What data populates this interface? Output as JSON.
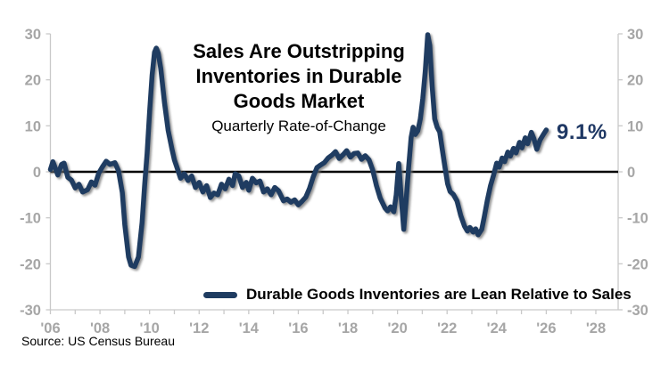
{
  "chart_data": {
    "type": "line",
    "title": "Sales Are Outstripping Inventories in Durable Goods Market",
    "title_lines": [
      "Sales Are Outstripping",
      "Inventories in Durable",
      "Goods Market"
    ],
    "subtitle": "Quarterly Rate-of-Change",
    "xlabel": "",
    "ylabel": "",
    "ylim": [
      -30,
      30
    ],
    "xlim": [
      2006,
      2028.9
    ],
    "grid": false,
    "legend_position": "bottom",
    "y_axis": {
      "ticks": [
        30,
        20,
        10,
        0,
        -10,
        -20,
        -30
      ],
      "tick_labels": [
        "30",
        "20",
        "10",
        "0",
        "-10",
        "-20",
        "-30"
      ],
      "sides": [
        "left",
        "right"
      ]
    },
    "x_axis": {
      "label_years": [
        2006,
        2008,
        2010,
        2012,
        2014,
        2016,
        2018,
        2020,
        2022,
        2024,
        2026,
        2028
      ],
      "tick_labels": [
        "'06",
        "'08",
        "'10",
        "'12",
        "'14",
        "'16",
        "'18",
        "'20",
        "'22",
        "'24",
        "'26",
        "'28"
      ],
      "minor_tick_years": [
        2006,
        2007,
        2008,
        2009,
        2010,
        2011,
        2012,
        2013,
        2014,
        2015,
        2016,
        2017,
        2018,
        2019,
        2020,
        2021,
        2022,
        2023,
        2024,
        2025,
        2026,
        2027,
        2028
      ]
    },
    "zero_line": true,
    "annotation": {
      "text": "9.1%",
      "x": 2026.5,
      "y": 8.5
    },
    "source": "Source: US Census Bureau",
    "colors": {
      "line": "#1F3C61",
      "annotation": "#1F3864",
      "axis_label": "#A6A6A6",
      "axis_line": "#C9C9C9",
      "zero_line": "#000000",
      "title": "#000000",
      "legend_text": "#000000"
    },
    "series": [
      {
        "name": "Durable Goods Inventories are Lean Relative to Sales",
        "color": "#1F3C61",
        "points": [
          [
            2006.0,
            0.5
          ],
          [
            2006.1,
            2.2
          ],
          [
            2006.3,
            -0.7
          ],
          [
            2006.45,
            1.6
          ],
          [
            2006.55,
            1.9
          ],
          [
            2006.7,
            -1.2
          ],
          [
            2006.85,
            -1.8
          ],
          [
            2007.0,
            -3.5
          ],
          [
            2007.15,
            -2.7
          ],
          [
            2007.3,
            -4.4
          ],
          [
            2007.5,
            -3.9
          ],
          [
            2007.65,
            -2.2
          ],
          [
            2007.8,
            -2.9
          ],
          [
            2007.95,
            -0.3
          ],
          [
            2008.1,
            1.1
          ],
          [
            2008.25,
            2.3
          ],
          [
            2008.4,
            1.6
          ],
          [
            2008.6,
            2.0
          ],
          [
            2008.75,
            0.2
          ],
          [
            2008.9,
            -4.5
          ],
          [
            2009.0,
            -11.5
          ],
          [
            2009.15,
            -18.5
          ],
          [
            2009.25,
            -20.3
          ],
          [
            2009.4,
            -20.6
          ],
          [
            2009.55,
            -18.5
          ],
          [
            2009.7,
            -11.0
          ],
          [
            2009.8,
            -3.0
          ],
          [
            2009.9,
            4.0
          ],
          [
            2010.0,
            13.0
          ],
          [
            2010.1,
            21.0
          ],
          [
            2010.2,
            26.0
          ],
          [
            2010.27,
            26.9
          ],
          [
            2010.35,
            25.8
          ],
          [
            2010.45,
            22.5
          ],
          [
            2010.6,
            15.0
          ],
          [
            2010.75,
            9.0
          ],
          [
            2010.9,
            5.0
          ],
          [
            2011.0,
            2.6
          ],
          [
            2011.1,
            1.0
          ],
          [
            2011.25,
            -1.4
          ],
          [
            2011.4,
            -0.4
          ],
          [
            2011.55,
            -1.9
          ],
          [
            2011.7,
            -0.9
          ],
          [
            2011.85,
            -3.4
          ],
          [
            2012.0,
            -2.3
          ],
          [
            2012.15,
            -4.4
          ],
          [
            2012.3,
            -3.0
          ],
          [
            2012.45,
            -5.6
          ],
          [
            2012.6,
            -4.6
          ],
          [
            2012.75,
            -5.0
          ],
          [
            2012.9,
            -2.7
          ],
          [
            2013.05,
            -3.7
          ],
          [
            2013.2,
            -1.6
          ],
          [
            2013.35,
            -3.0
          ],
          [
            2013.45,
            -0.4
          ],
          [
            2013.6,
            -0.9
          ],
          [
            2013.75,
            -3.4
          ],
          [
            2013.9,
            -2.3
          ],
          [
            2014.0,
            -4.0
          ],
          [
            2014.15,
            -1.4
          ],
          [
            2014.3,
            -2.4
          ],
          [
            2014.45,
            -2.0
          ],
          [
            2014.6,
            -4.4
          ],
          [
            2014.75,
            -3.7
          ],
          [
            2014.9,
            -5.0
          ],
          [
            2015.05,
            -3.4
          ],
          [
            2015.2,
            -4.1
          ],
          [
            2015.4,
            -6.3
          ],
          [
            2015.55,
            -5.9
          ],
          [
            2015.7,
            -6.6
          ],
          [
            2015.85,
            -6.1
          ],
          [
            2016.0,
            -7.2
          ],
          [
            2016.15,
            -6.4
          ],
          [
            2016.3,
            -5.5
          ],
          [
            2016.45,
            -3.6
          ],
          [
            2016.6,
            -1.1
          ],
          [
            2016.75,
            0.9
          ],
          [
            2016.9,
            1.5
          ],
          [
            2017.05,
            2.0
          ],
          [
            2017.2,
            3.0
          ],
          [
            2017.35,
            3.6
          ],
          [
            2017.5,
            4.4
          ],
          [
            2017.65,
            2.9
          ],
          [
            2017.8,
            3.7
          ],
          [
            2017.95,
            4.6
          ],
          [
            2018.1,
            3.2
          ],
          [
            2018.25,
            4.0
          ],
          [
            2018.4,
            4.1
          ],
          [
            2018.55,
            2.7
          ],
          [
            2018.7,
            3.5
          ],
          [
            2018.85,
            2.6
          ],
          [
            2019.0,
            0.4
          ],
          [
            2019.15,
            -3.0
          ],
          [
            2019.3,
            -5.7
          ],
          [
            2019.5,
            -7.9
          ],
          [
            2019.6,
            -8.5
          ],
          [
            2019.72,
            -7.6
          ],
          [
            2019.85,
            -8.7
          ],
          [
            2019.95,
            -5.0
          ],
          [
            2020.05,
            1.8
          ],
          [
            2020.15,
            -5.5
          ],
          [
            2020.25,
            -12.5
          ],
          [
            2020.35,
            -6.0
          ],
          [
            2020.45,
            1.0
          ],
          [
            2020.55,
            7.5
          ],
          [
            2020.63,
            9.7
          ],
          [
            2020.72,
            8.1
          ],
          [
            2020.82,
            8.9
          ],
          [
            2020.92,
            11.5
          ],
          [
            2021.02,
            16.0
          ],
          [
            2021.12,
            22.0
          ],
          [
            2021.22,
            29.8
          ],
          [
            2021.3,
            27.5
          ],
          [
            2021.4,
            18.5
          ],
          [
            2021.5,
            11.5
          ],
          [
            2021.6,
            9.7
          ],
          [
            2021.7,
            8.7
          ],
          [
            2021.8,
            5.0
          ],
          [
            2021.92,
            0.8
          ],
          [
            2022.02,
            -2.6
          ],
          [
            2022.12,
            -4.3
          ],
          [
            2022.25,
            -4.9
          ],
          [
            2022.4,
            -6.3
          ],
          [
            2022.55,
            -9.5
          ],
          [
            2022.7,
            -11.8
          ],
          [
            2022.82,
            -12.9
          ],
          [
            2022.92,
            -12.1
          ],
          [
            2023.05,
            -13.1
          ],
          [
            2023.15,
            -12.4
          ],
          [
            2023.25,
            -13.7
          ],
          [
            2023.4,
            -12.5
          ],
          [
            2023.5,
            -9.8
          ],
          [
            2023.62,
            -6.3
          ],
          [
            2023.75,
            -3.0
          ],
          [
            2023.88,
            -0.6
          ],
          [
            2024.0,
            1.9
          ],
          [
            2024.1,
            1.0
          ],
          [
            2024.22,
            3.0
          ],
          [
            2024.32,
            2.2
          ],
          [
            2024.45,
            4.3
          ],
          [
            2024.55,
            3.4
          ],
          [
            2024.68,
            5.1
          ],
          [
            2024.78,
            4.1
          ],
          [
            2024.92,
            6.4
          ],
          [
            2025.02,
            5.2
          ],
          [
            2025.15,
            7.4
          ],
          [
            2025.25,
            6.1
          ],
          [
            2025.4,
            8.6
          ],
          [
            2025.5,
            7.2
          ],
          [
            2025.62,
            4.9
          ],
          [
            2025.75,
            6.9
          ],
          [
            2025.88,
            8.1
          ],
          [
            2026.0,
            9.1
          ]
        ]
      }
    ]
  }
}
